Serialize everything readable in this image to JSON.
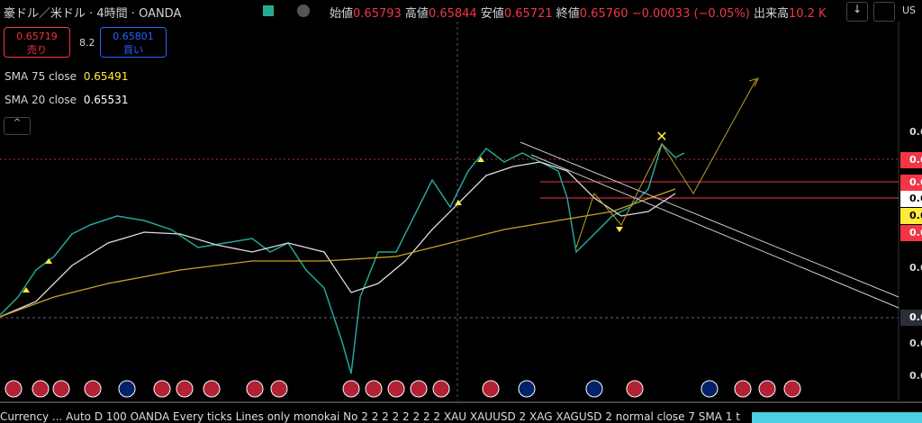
{
  "header": {
    "symbol": "豪ドル／米ドル · 4時間 · OANDA",
    "open_label": "始値",
    "open": "0.65793",
    "high_label": "高値",
    "high": "0.65844",
    "low_label": "安値",
    "low": "0.65721",
    "close_label": "終値",
    "close": "0.65760",
    "change": "−0.00033 (−0.05%)",
    "volume_label": "出来高",
    "volume": "10.2 K"
  },
  "trade": {
    "sell_price": "0.65719",
    "sell_label": "売り",
    "spread": "8.2",
    "buy_price": "0.65801",
    "buy_label": "買い"
  },
  "indicators": [
    {
      "name": "SMA 75 close",
      "value": "0.65491"
    },
    {
      "name": "SMA 20 close",
      "value": "0.65531"
    }
  ],
  "price_axis": [
    "0.6",
    "0.6",
    "0.6",
    "0.6",
    "0.6",
    "0.6",
    "0.6",
    "0.6",
    "0.6",
    "0.6"
  ],
  "footer": {
    "text": "Currency ... Auto D 100 OANDA Every ticks Lines only monokai No 2 2 2 2 2 2 2 2 XAU XAUUSD 2 XAG XAGUSD 2 normal close 7 SMA 1 t"
  },
  "toolbar": {
    "currency": "US"
  }
}
